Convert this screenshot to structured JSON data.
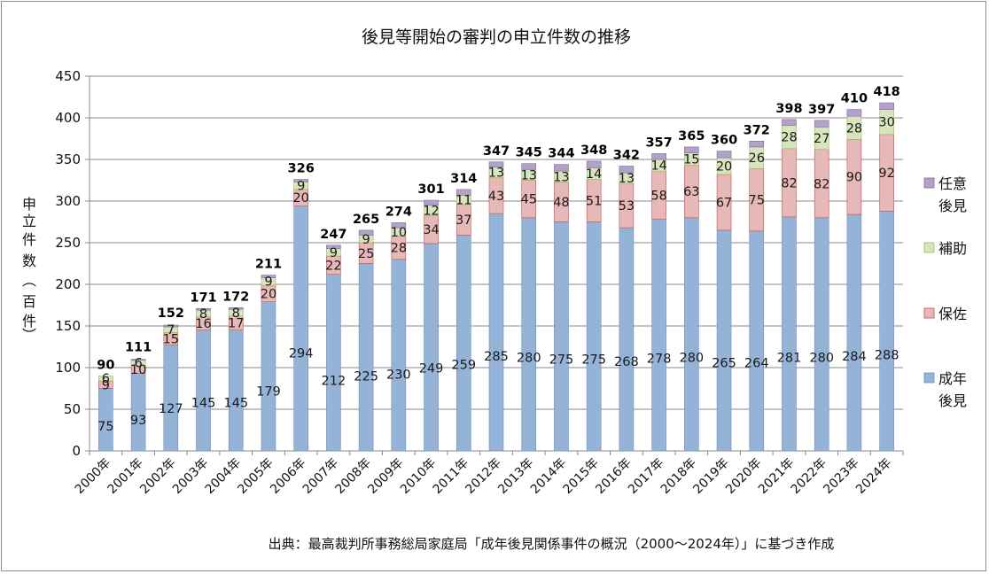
{
  "chart_data": {
    "type": "bar",
    "stacked": true,
    "title": "後見等開始の審判の申立件数の推移",
    "ylabel_chars": [
      "申",
      "立",
      "件",
      "数",
      "︵",
      "百",
      "件",
      "︶"
    ],
    "ylim": [
      0,
      450
    ],
    "yticks": [
      0,
      50,
      100,
      150,
      200,
      250,
      300,
      350,
      400,
      450
    ],
    "grid": true,
    "legend_position": "right",
    "categories": [
      "2000年",
      "2001年",
      "2002年",
      "2003年",
      "2004年",
      "2005年",
      "2006年",
      "2007年",
      "2008年",
      "2009年",
      "2010年",
      "2011年",
      "2012年",
      "2013年",
      "2014年",
      "2015年",
      "2016年",
      "2017年",
      "2018年",
      "2019年",
      "2020年",
      "2021年",
      "2022年",
      "2023年",
      "2024年"
    ],
    "series": [
      {
        "name": "成年後見",
        "legend_lines": [
          "成年",
          "後見"
        ],
        "color": "#95b3d7",
        "edge": "#6f8fbf",
        "values": [
          75,
          93,
          127,
          145,
          145,
          179,
          294,
          212,
          225,
          230,
          249,
          259,
          285,
          280,
          275,
          275,
          268,
          278,
          280,
          265,
          264,
          281,
          280,
          284,
          288
        ]
      },
      {
        "name": "保佐",
        "legend_lines": [
          "保佐"
        ],
        "color": "#e6b9b8",
        "edge": "#c0504d",
        "values": [
          9,
          10,
          15,
          16,
          17,
          20,
          20,
          22,
          25,
          28,
          34,
          37,
          43,
          45,
          48,
          51,
          53,
          58,
          63,
          67,
          75,
          82,
          82,
          90,
          92
        ]
      },
      {
        "name": "補助",
        "legend_lines": [
          "補助"
        ],
        "color": "#d7e4bd",
        "edge": "#9bbb59",
        "values": [
          6,
          6,
          7,
          8,
          8,
          9,
          9,
          9,
          9,
          10,
          12,
          11,
          13,
          13,
          13,
          14,
          13,
          14,
          15,
          20,
          26,
          28,
          27,
          28,
          30
        ]
      },
      {
        "name": "任意後見",
        "legend_lines": [
          "任意",
          "後見"
        ],
        "color": "#b3a2c7",
        "edge": "#8064a2",
        "values": [
          0,
          1,
          2,
          2,
          2,
          3,
          3,
          4,
          6,
          6,
          6,
          7,
          6,
          7,
          8,
          8,
          8,
          7,
          7,
          8,
          7,
          7,
          8,
          8,
          8
        ]
      }
    ],
    "totals": [
      90,
      111,
      152,
      171,
      172,
      211,
      326,
      247,
      265,
      274,
      301,
      314,
      347,
      345,
      344,
      348,
      342,
      357,
      365,
      360,
      372,
      398,
      397,
      410,
      418
    ]
  },
  "source": "出典：最高裁判所事務総局家庭局「成年後見関係事件の概況（2000〜2024年）」に基づき作成"
}
